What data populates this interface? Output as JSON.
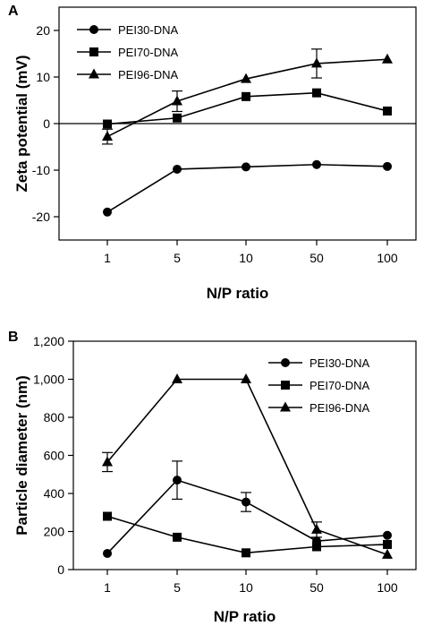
{
  "chart_data": [
    {
      "panel_label": "A",
      "type": "line",
      "categories": [
        "1",
        "5",
        "10",
        "50",
        "100"
      ],
      "xlabel": "N/P ratio",
      "ylabel": "Zeta potential (mV)",
      "ylim": [
        -25,
        25
      ],
      "yticks": [
        -20,
        -10,
        0,
        10,
        20
      ],
      "zero_line": true,
      "legend_position": "top-left",
      "series": [
        {
          "name": "PEI30-DNA",
          "marker": "circle",
          "values": [
            -19,
            -9.8,
            -9.3,
            -8.8,
            -9.2
          ],
          "errors": [
            0,
            0,
            0,
            0,
            0
          ]
        },
        {
          "name": "PEI70-DNA",
          "marker": "square",
          "values": [
            -0.1,
            1.2,
            5.8,
            6.6,
            2.7
          ],
          "errors": [
            0,
            0,
            0,
            0,
            0
          ]
        },
        {
          "name": "PEI96-DNA",
          "marker": "triangle",
          "values": [
            -2.8,
            4.8,
            9.6,
            12.9,
            13.8
          ],
          "errors": [
            1.6,
            2.2,
            0,
            3.1,
            0
          ]
        }
      ]
    },
    {
      "panel_label": "B",
      "type": "line",
      "categories": [
        "1",
        "5",
        "10",
        "50",
        "100"
      ],
      "xlabel": "N/P ratio",
      "ylabel": "Particle diameter (nm)",
      "ylim": [
        0,
        1200
      ],
      "yticks": [
        0,
        200,
        400,
        600,
        800,
        1000,
        1200
      ],
      "ytick_labels": [
        "0",
        "200",
        "400",
        "600",
        "800",
        "1,000",
        "1,200"
      ],
      "legend_position": "top-right",
      "series": [
        {
          "name": "PEI30-DNA",
          "marker": "circle",
          "values": [
            85,
            470,
            355,
            150,
            180
          ],
          "errors": [
            0,
            100,
            50,
            0,
            0
          ]
        },
        {
          "name": "PEI70-DNA",
          "marker": "square",
          "values": [
            280,
            170,
            88,
            120,
            132
          ],
          "errors": [
            0,
            0,
            0,
            0,
            0
          ]
        },
        {
          "name": "PEI96-DNA",
          "marker": "triangle",
          "values": [
            565,
            1000,
            1000,
            210,
            78
          ],
          "errors": [
            50,
            0,
            0,
            40,
            0
          ]
        }
      ]
    }
  ]
}
